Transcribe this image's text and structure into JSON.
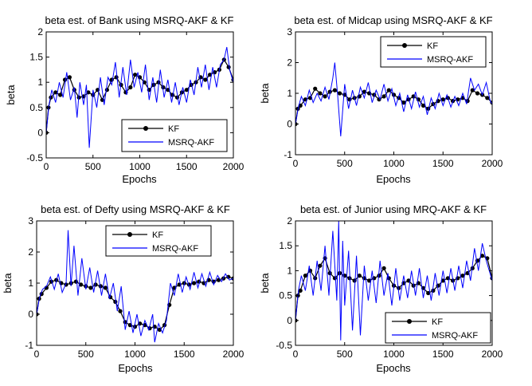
{
  "chart_data": [
    {
      "type": "line",
      "title": "beta est. of Bank using MSRQ-AKF & KF",
      "xlabel": "Epochs",
      "ylabel": "beta",
      "xlim": [
        0,
        2000
      ],
      "ylim": [
        -0.5,
        2
      ],
      "xticks": [
        0,
        500,
        1000,
        1500,
        2000
      ],
      "yticks": [
        -0.5,
        0,
        0.5,
        1,
        1.5,
        2
      ],
      "ytick_labels": [
        "-0.5",
        "0",
        "0.5",
        "1",
        "1.5",
        "2"
      ],
      "legend_position": "bottom-right",
      "series": [
        {
          "name": "KF",
          "style": "line-with-markers",
          "color": "#000000",
          "x": [
            0,
            25,
            50,
            100,
            150,
            200,
            250,
            300,
            350,
            400,
            450,
            500,
            550,
            600,
            650,
            700,
            750,
            800,
            850,
            900,
            950,
            1000,
            1050,
            1100,
            1150,
            1200,
            1250,
            1300,
            1350,
            1400,
            1450,
            1500,
            1550,
            1600,
            1650,
            1700,
            1750,
            1800,
            1850,
            1900,
            1950,
            2000
          ],
          "values": [
            0,
            0.5,
            0.7,
            0.8,
            0.75,
            1.05,
            1.1,
            0.85,
            0.7,
            0.72,
            0.8,
            0.75,
            0.85,
            0.65,
            0.85,
            1.05,
            1.1,
            0.95,
            0.8,
            0.9,
            1.15,
            1.1,
            1.0,
            0.85,
            0.95,
            1.0,
            0.9,
            0.85,
            0.75,
            0.7,
            0.8,
            0.85,
            0.95,
            1.0,
            1.1,
            1.05,
            1.15,
            1.2,
            1.25,
            1.45,
            1.3,
            1.05
          ]
        },
        {
          "name": "MSRQ-AKF",
          "style": "line",
          "color": "#0000ff",
          "x": [
            0,
            30,
            60,
            100,
            140,
            180,
            220,
            260,
            300,
            330,
            360,
            400,
            430,
            460,
            500,
            540,
            580,
            620,
            660,
            700,
            740,
            780,
            820,
            860,
            900,
            940,
            980,
            1020,
            1060,
            1100,
            1140,
            1180,
            1220,
            1260,
            1300,
            1340,
            1380,
            1420,
            1460,
            1500,
            1540,
            1580,
            1620,
            1660,
            1700,
            1740,
            1780,
            1820,
            1860,
            1900,
            1930,
            1960,
            2000
          ],
          "values": [
            0,
            0.55,
            0.85,
            0.6,
            1.0,
            0.7,
            1.2,
            0.65,
            0.9,
            0.3,
            1.0,
            0.55,
            0.95,
            -0.3,
            0.85,
            0.5,
            1.1,
            0.55,
            1.1,
            0.95,
            1.4,
            0.7,
            1.3,
            0.75,
            1.45,
            0.9,
            1.2,
            0.8,
            1.35,
            0.65,
            1.1,
            0.6,
            1.25,
            0.7,
            1.05,
            0.6,
            1.0,
            0.55,
            0.9,
            0.6,
            1.05,
            0.75,
            1.3,
            0.9,
            1.35,
            0.85,
            1.3,
            0.9,
            1.35,
            1.45,
            1.7,
            1.25,
            1.0
          ]
        }
      ]
    },
    {
      "type": "line",
      "title": "beta est. of Midcap using MSRQ-AKF & KF",
      "xlabel": "Epochs",
      "ylabel": "beta",
      "xlim": [
        0,
        2000
      ],
      "ylim": [
        -1,
        3
      ],
      "xticks": [
        0,
        500,
        1000,
        1500,
        2000
      ],
      "yticks": [
        -1,
        0,
        1,
        2,
        3
      ],
      "ytick_labels": [
        "-1",
        "0",
        "1",
        "2",
        "3"
      ],
      "legend_position": "top-right",
      "series": [
        {
          "name": "KF",
          "style": "line-with-markers",
          "color": "#000000",
          "x": [
            0,
            25,
            50,
            100,
            150,
            200,
            250,
            300,
            350,
            400,
            450,
            500,
            550,
            600,
            650,
            700,
            750,
            800,
            850,
            900,
            950,
            1000,
            1050,
            1100,
            1150,
            1200,
            1250,
            1300,
            1350,
            1400,
            1450,
            1500,
            1550,
            1600,
            1650,
            1700,
            1750,
            1800,
            1850,
            1900,
            1950,
            2000
          ],
          "values": [
            0,
            0.5,
            0.6,
            0.8,
            0.85,
            1.15,
            1.0,
            0.9,
            1.05,
            1.1,
            1.0,
            0.95,
            0.8,
            0.85,
            0.9,
            1.05,
            1.0,
            0.95,
            0.8,
            0.9,
            1.1,
            0.95,
            0.85,
            0.7,
            0.8,
            0.9,
            0.8,
            0.6,
            0.5,
            0.65,
            0.75,
            0.8,
            0.85,
            0.75,
            0.8,
            0.85,
            0.75,
            1.1,
            1.0,
            0.95,
            0.85,
            0.7
          ]
        },
        {
          "name": "MSRQ-AKF",
          "style": "line",
          "color": "#0000ff",
          "x": [
            0,
            30,
            60,
            100,
            140,
            180,
            220,
            260,
            300,
            340,
            380,
            400,
            430,
            460,
            500,
            540,
            580,
            620,
            660,
            700,
            740,
            780,
            820,
            860,
            900,
            940,
            980,
            1020,
            1060,
            1100,
            1140,
            1180,
            1220,
            1260,
            1300,
            1340,
            1380,
            1420,
            1460,
            1500,
            1540,
            1580,
            1620,
            1660,
            1700,
            1740,
            1780,
            1820,
            1860,
            1900,
            1940,
            1980,
            2000
          ],
          "values": [
            0,
            0.55,
            0.9,
            0.6,
            1.1,
            0.7,
            1.0,
            0.75,
            1.2,
            0.8,
            1.5,
            2.0,
            0.9,
            -0.4,
            1.3,
            0.5,
            1.1,
            0.6,
            1.2,
            0.85,
            1.35,
            0.7,
            1.1,
            0.8,
            1.3,
            0.75,
            1.15,
            0.6,
            1.0,
            0.4,
            0.95,
            0.5,
            1.05,
            0.55,
            0.9,
            0.3,
            0.85,
            0.5,
            1.0,
            0.6,
            0.95,
            0.55,
            0.9,
            0.6,
            1.0,
            0.65,
            1.5,
            1.1,
            1.3,
            0.95,
            1.35,
            0.75,
            0.65
          ]
        }
      ]
    },
    {
      "type": "line",
      "title": "beta est. of Defty using MSRQ-AKF & KF",
      "xlabel": "Epochs",
      "ylabel": "beta",
      "xlim": [
        0,
        2000
      ],
      "ylim": [
        -1,
        3
      ],
      "xticks": [
        0,
        500,
        1000,
        1500,
        2000
      ],
      "yticks": [
        -1,
        0,
        1,
        2,
        3
      ],
      "ytick_labels": [
        "-1",
        "0",
        "1",
        "2",
        "3"
      ],
      "legend_position": "top-right",
      "series": [
        {
          "name": "KF",
          "style": "line-with-markers",
          "color": "#000000",
          "x": [
            0,
            25,
            50,
            100,
            150,
            200,
            250,
            300,
            350,
            400,
            450,
            500,
            550,
            600,
            650,
            700,
            750,
            800,
            850,
            900,
            950,
            1000,
            1050,
            1100,
            1150,
            1200,
            1250,
            1300,
            1350,
            1400,
            1450,
            1500,
            1550,
            1600,
            1650,
            1700,
            1750,
            1800,
            1850,
            1900,
            1950,
            2000
          ],
          "values": [
            0,
            0.5,
            0.65,
            0.85,
            1.05,
            1.1,
            1.0,
            0.95,
            1.0,
            1.05,
            0.95,
            0.9,
            0.85,
            0.95,
            0.9,
            0.85,
            0.55,
            0.4,
            0.1,
            -0.25,
            -0.35,
            -0.4,
            -0.3,
            -0.35,
            -0.45,
            -0.4,
            -0.5,
            -0.35,
            0.3,
            0.85,
            0.95,
            1.0,
            0.95,
            1.0,
            1.05,
            1.0,
            1.1,
            1.05,
            1.1,
            1.15,
            1.2,
            1.15
          ]
        },
        {
          "name": "MSRQ-AKF",
          "style": "line",
          "color": "#0000ff",
          "x": [
            0,
            30,
            60,
            100,
            140,
            180,
            220,
            260,
            300,
            320,
            350,
            380,
            420,
            460,
            500,
            540,
            580,
            620,
            660,
            700,
            740,
            780,
            820,
            860,
            900,
            940,
            980,
            1020,
            1060,
            1100,
            1140,
            1180,
            1200,
            1240,
            1280,
            1320,
            1360,
            1400,
            1440,
            1480,
            1520,
            1560,
            1600,
            1640,
            1680,
            1720,
            1760,
            1800,
            1840,
            1880,
            1920,
            1960,
            2000
          ],
          "values": [
            0,
            0.55,
            0.8,
            0.9,
            1.2,
            0.8,
            1.3,
            0.7,
            1.0,
            2.7,
            0.9,
            2.2,
            0.6,
            1.8,
            0.8,
            1.5,
            0.7,
            1.4,
            0.6,
            1.3,
            0.5,
            1.0,
            0.1,
            0.9,
            -0.5,
            0.1,
            -0.6,
            0.0,
            -0.7,
            -0.2,
            -0.5,
            0.0,
            -0.9,
            -0.3,
            -0.6,
            -0.2,
            1.0,
            0.6,
            1.3,
            0.7,
            1.2,
            0.8,
            1.35,
            0.85,
            1.3,
            0.9,
            1.35,
            0.95,
            1.25,
            1.05,
            1.3,
            1.1,
            1.15
          ]
        }
      ]
    },
    {
      "type": "line",
      "title": "beta est. of Junior using MRQ-AKF & KF",
      "xlabel": "Epochs",
      "ylabel": "beta",
      "xlim": [
        0,
        2000
      ],
      "ylim": [
        -0.5,
        2
      ],
      "xticks": [
        0,
        500,
        1000,
        1500,
        2000
      ],
      "yticks": [
        -0.5,
        0,
        0.5,
        1,
        1.5,
        2
      ],
      "ytick_labels": [
        "-0.5",
        "0",
        "0.5",
        "1",
        "1.5",
        "2"
      ],
      "legend_position": "bottom-right",
      "series": [
        {
          "name": "KF",
          "style": "line-with-markers",
          "color": "#000000",
          "x": [
            0,
            25,
            50,
            100,
            150,
            200,
            250,
            300,
            350,
            400,
            450,
            500,
            550,
            600,
            650,
            700,
            750,
            800,
            850,
            900,
            950,
            1000,
            1050,
            1100,
            1150,
            1200,
            1250,
            1300,
            1350,
            1400,
            1450,
            1500,
            1550,
            1600,
            1650,
            1700,
            1750,
            1800,
            1850,
            1900,
            1950,
            2000
          ],
          "values": [
            0,
            0.5,
            0.6,
            0.9,
            1.0,
            0.85,
            1.1,
            1.25,
            0.95,
            0.85,
            0.95,
            0.9,
            0.85,
            0.8,
            0.9,
            0.85,
            0.8,
            0.85,
            0.9,
            1.05,
            0.85,
            0.7,
            0.65,
            0.75,
            0.8,
            0.7,
            0.75,
            0.65,
            0.55,
            0.6,
            0.7,
            0.8,
            0.85,
            0.8,
            0.85,
            0.9,
            0.95,
            1.05,
            1.2,
            1.3,
            1.25,
            0.85
          ]
        },
        {
          "name": "MSRQ-AKF",
          "style": "line",
          "color": "#0000ff",
          "x": [
            0,
            30,
            60,
            100,
            140,
            180,
            220,
            260,
            300,
            340,
            380,
            420,
            440,
            460,
            480,
            500,
            540,
            580,
            620,
            660,
            700,
            740,
            780,
            820,
            860,
            900,
            940,
            980,
            1020,
            1060,
            1100,
            1140,
            1180,
            1220,
            1260,
            1300,
            1340,
            1380,
            1420,
            1460,
            1500,
            1540,
            1580,
            1620,
            1660,
            1700,
            1740,
            1780,
            1820,
            1860,
            1900,
            1940,
            2000
          ],
          "values": [
            0,
            0.6,
            0.9,
            0.6,
            1.1,
            0.5,
            1.2,
            0.6,
            1.5,
            0.5,
            1.8,
            0.4,
            2.0,
            -0.4,
            1.6,
            0.3,
            1.4,
            -0.2,
            1.3,
            -0.3,
            1.1,
            0.4,
            1.0,
            0.35,
            1.2,
            0.5,
            0.95,
            0.3,
            1.05,
            0.4,
            0.9,
            0.45,
            1.0,
            0.5,
            1.05,
            0.45,
            0.9,
            0.4,
            0.95,
            0.5,
            1.0,
            0.55,
            1.05,
            0.6,
            1.1,
            0.65,
            1.2,
            0.8,
            1.45,
            1.0,
            1.55,
            1.2,
            0.8
          ]
        }
      ]
    }
  ]
}
